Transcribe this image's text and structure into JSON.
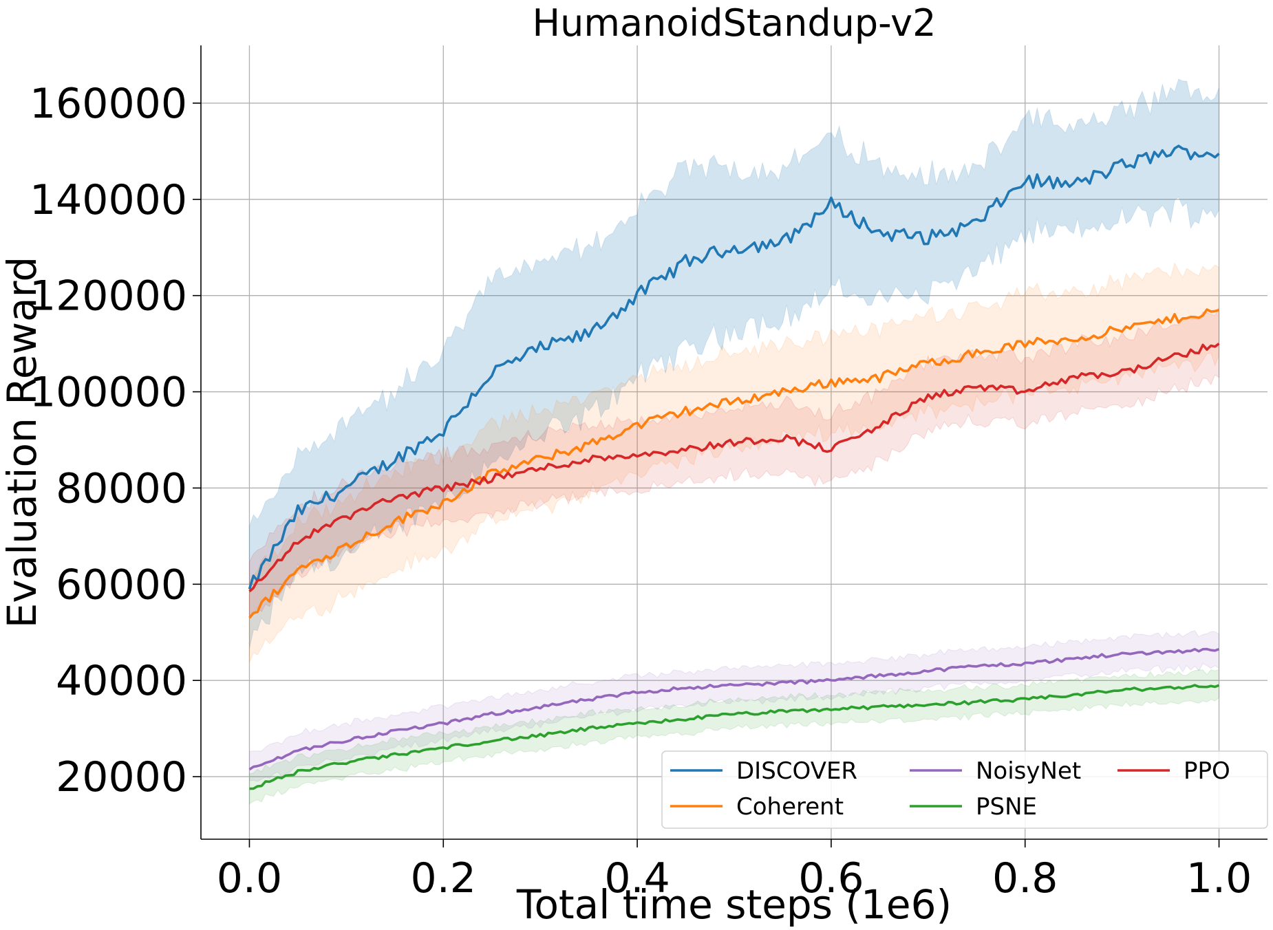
{
  "chart_data": {
    "type": "line",
    "title": "HumanoidStandup-v2",
    "xlabel": "Total time steps (1e6)",
    "ylabel": "Evaluation Reward",
    "xlim": [
      -0.05,
      1.05
    ],
    "ylim": [
      7000,
      172000
    ],
    "xticks": [
      0.0,
      0.2,
      0.4,
      0.6,
      0.8,
      1.0
    ],
    "xtick_labels": [
      "0.0",
      "0.2",
      "0.4",
      "0.6",
      "0.8",
      "1.0"
    ],
    "yticks": [
      20000,
      40000,
      60000,
      80000,
      100000,
      120000,
      140000,
      160000
    ],
    "ytick_labels": [
      "20000",
      "40000",
      "60000",
      "80000",
      "100000",
      "120000",
      "140000",
      "160000"
    ],
    "grid": true,
    "legend": {
      "placement": "lower-right",
      "columns": 3
    },
    "series": [
      {
        "name": "DISCOVER",
        "color": "#1f77b4",
        "x": [
          0.0,
          0.05,
          0.1,
          0.15,
          0.2,
          0.25,
          0.3,
          0.35,
          0.4,
          0.45,
          0.5,
          0.55,
          0.6,
          0.65,
          0.7,
          0.75,
          0.8,
          0.85,
          0.9,
          0.95,
          1.0
        ],
        "mean": [
          59000,
          75000,
          80000,
          86000,
          92000,
          104000,
          109000,
          112000,
          120000,
          127000,
          130000,
          131000,
          139000,
          133000,
          132000,
          135000,
          144000,
          143000,
          147000,
          150000,
          149500
        ],
        "lower": [
          47000,
          63000,
          66000,
          72000,
          78000,
          85000,
          91000,
          95000,
          103000,
          109000,
          113000,
          115000,
          121000,
          119000,
          121000,
          125000,
          133000,
          133000,
          136000,
          138000,
          137000
        ],
        "upper": [
          71000,
          86000,
          94000,
          100000,
          108000,
          124000,
          126000,
          130000,
          138000,
          146000,
          147000,
          146000,
          153000,
          147000,
          145000,
          146000,
          157000,
          154000,
          158000,
          162000,
          163000
        ]
      },
      {
        "name": "Coherent",
        "color": "#ff7f0e",
        "x": [
          0.0,
          0.05,
          0.1,
          0.15,
          0.2,
          0.25,
          0.3,
          0.35,
          0.4,
          0.45,
          0.5,
          0.55,
          0.6,
          0.65,
          0.7,
          0.75,
          0.8,
          0.85,
          0.9,
          0.95,
          1.0
        ],
        "mean": [
          53000,
          63000,
          68000,
          73000,
          77000,
          83000,
          86000,
          89000,
          93000,
          96000,
          98000,
          100000,
          102000,
          103000,
          106000,
          108000,
          110000,
          111000,
          113000,
          115000,
          117000
        ],
        "lower": [
          45000,
          53000,
          58000,
          63000,
          67000,
          73000,
          76000,
          79000,
          83000,
          86000,
          88000,
          90000,
          92000,
          93000,
          96000,
          98000,
          100000,
          101000,
          103000,
          105000,
          107000
        ],
        "upper": [
          61000,
          73000,
          78000,
          83000,
          87000,
          93000,
          96000,
          99000,
          103000,
          106000,
          108000,
          110000,
          112000,
          113000,
          116000,
          118000,
          120000,
          121000,
          123000,
          125000,
          126000
        ]
      },
      {
        "name": "NoisyNet",
        "color": "#9467bd",
        "x": [
          0.0,
          0.05,
          0.1,
          0.15,
          0.2,
          0.25,
          0.3,
          0.35,
          0.4,
          0.45,
          0.5,
          0.55,
          0.6,
          0.65,
          0.7,
          0.75,
          0.8,
          0.85,
          0.9,
          0.95,
          1.0
        ],
        "mean": [
          21500,
          25500,
          27500,
          29500,
          31000,
          33000,
          34500,
          36000,
          37500,
          38500,
          39000,
          39500,
          40000,
          41000,
          42000,
          43000,
          43500,
          44500,
          45500,
          46000,
          46500
        ],
        "lower": [
          18500,
          22000,
          24000,
          26000,
          27500,
          29500,
          31000,
          32500,
          34000,
          35000,
          35500,
          36000,
          36500,
          37500,
          38500,
          39500,
          40000,
          41000,
          42000,
          42500,
          43000
        ],
        "upper": [
          24500,
          29000,
          31000,
          33000,
          34500,
          36500,
          38000,
          39500,
          41000,
          42000,
          42500,
          43000,
          43500,
          44500,
          45500,
          46500,
          47000,
          48000,
          49000,
          49500,
          50000
        ]
      },
      {
        "name": "PSNE",
        "color": "#2ca02c",
        "x": [
          0.0,
          0.05,
          0.1,
          0.15,
          0.2,
          0.25,
          0.3,
          0.35,
          0.4,
          0.45,
          0.5,
          0.55,
          0.6,
          0.65,
          0.7,
          0.75,
          0.8,
          0.85,
          0.9,
          0.95,
          1.0
        ],
        "mean": [
          17500,
          21000,
          23000,
          24500,
          26000,
          27500,
          28500,
          30000,
          31000,
          32000,
          33000,
          33500,
          34000,
          34500,
          35000,
          35500,
          36000,
          37000,
          38000,
          38500,
          39000
        ],
        "lower": [
          14500,
          18000,
          20000,
          21500,
          23000,
          24500,
          25500,
          27000,
          28000,
          29000,
          30000,
          30500,
          31000,
          31500,
          32000,
          32500,
          33000,
          34000,
          35000,
          35500,
          36000
        ],
        "upper": [
          20500,
          24000,
          26000,
          27500,
          29000,
          30500,
          31500,
          33000,
          34000,
          35000,
          36000,
          36500,
          37000,
          37500,
          38000,
          38500,
          39000,
          40000,
          41000,
          41500,
          42000
        ]
      },
      {
        "name": "PPO",
        "color": "#d62728",
        "x": [
          0.0,
          0.05,
          0.1,
          0.15,
          0.2,
          0.25,
          0.3,
          0.35,
          0.4,
          0.45,
          0.5,
          0.55,
          0.6,
          0.65,
          0.7,
          0.75,
          0.8,
          0.85,
          0.9,
          0.95,
          1.0
        ],
        "mean": [
          58500,
          69000,
          74000,
          78000,
          80000,
          82000,
          84000,
          86000,
          87000,
          88000,
          89500,
          90500,
          88000,
          93000,
          99000,
          101000,
          100000,
          103000,
          104000,
          107000,
          110000
        ],
        "lower": [
          52000,
          62000,
          67000,
          71000,
          73000,
          75000,
          77000,
          79000,
          80000,
          81000,
          82500,
          83500,
          81000,
          86000,
          92000,
          94000,
          93000,
          96000,
          97000,
          100000,
          103000
        ],
        "upper": [
          65000,
          76000,
          81000,
          85000,
          87000,
          89000,
          91000,
          93000,
          94000,
          95000,
          96500,
          97500,
          95000,
          100000,
          106000,
          108000,
          107000,
          110000,
          111000,
          114000,
          117000
        ]
      }
    ]
  }
}
